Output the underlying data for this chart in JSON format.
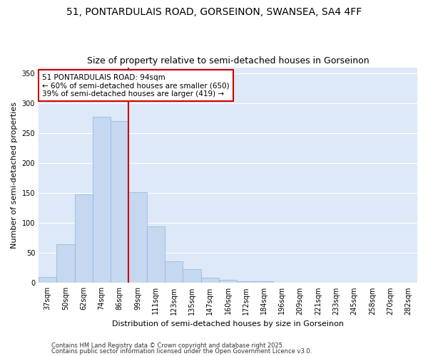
{
  "title_line1": "51, PONTARDULAIS ROAD, GORSEINON, SWANSEA, SA4 4FF",
  "title_line2": "Size of property relative to semi-detached houses in Gorseinon",
  "xlabel": "Distribution of semi-detached houses by size in Gorseinon",
  "ylabel": "Number of semi-detached properties",
  "categories": [
    "37sqm",
    "50sqm",
    "62sqm",
    "74sqm",
    "86sqm",
    "99sqm",
    "111sqm",
    "123sqm",
    "135sqm",
    "147sqm",
    "160sqm",
    "172sqm",
    "184sqm",
    "196sqm",
    "209sqm",
    "221sqm",
    "233sqm",
    "245sqm",
    "258sqm",
    "270sqm",
    "282sqm"
  ],
  "values": [
    10,
    65,
    148,
    278,
    270,
    152,
    95,
    36,
    23,
    9,
    5,
    3,
    3,
    1,
    0,
    0,
    0,
    0,
    1,
    0,
    1
  ],
  "bar_color": "#c5d8f0",
  "bar_edge_color": "#8ab4e0",
  "vline_color": "#cc0000",
  "vline_x_index": 5,
  "annotation_text": "51 PONTARDULAIS ROAD: 94sqm\n← 60% of semi-detached houses are smaller (650)\n39% of semi-detached houses are larger (419) →",
  "annotation_box_edgecolor": "#cc0000",
  "ylim": [
    0,
    360
  ],
  "yticks": [
    0,
    50,
    100,
    150,
    200,
    250,
    300,
    350
  ],
  "plot_bg_color": "#dde8f8",
  "fig_bg_color": "#ffffff",
  "grid_color": "#ffffff",
  "footer_line1": "Contains HM Land Registry data © Crown copyright and database right 2025.",
  "footer_line2": "Contains public sector information licensed under the Open Government Licence v3.0.",
  "title_fontsize": 10,
  "subtitle_fontsize": 9,
  "axis_label_fontsize": 8,
  "tick_fontsize": 7,
  "annotation_fontsize": 7.5,
  "footer_fontsize": 6
}
